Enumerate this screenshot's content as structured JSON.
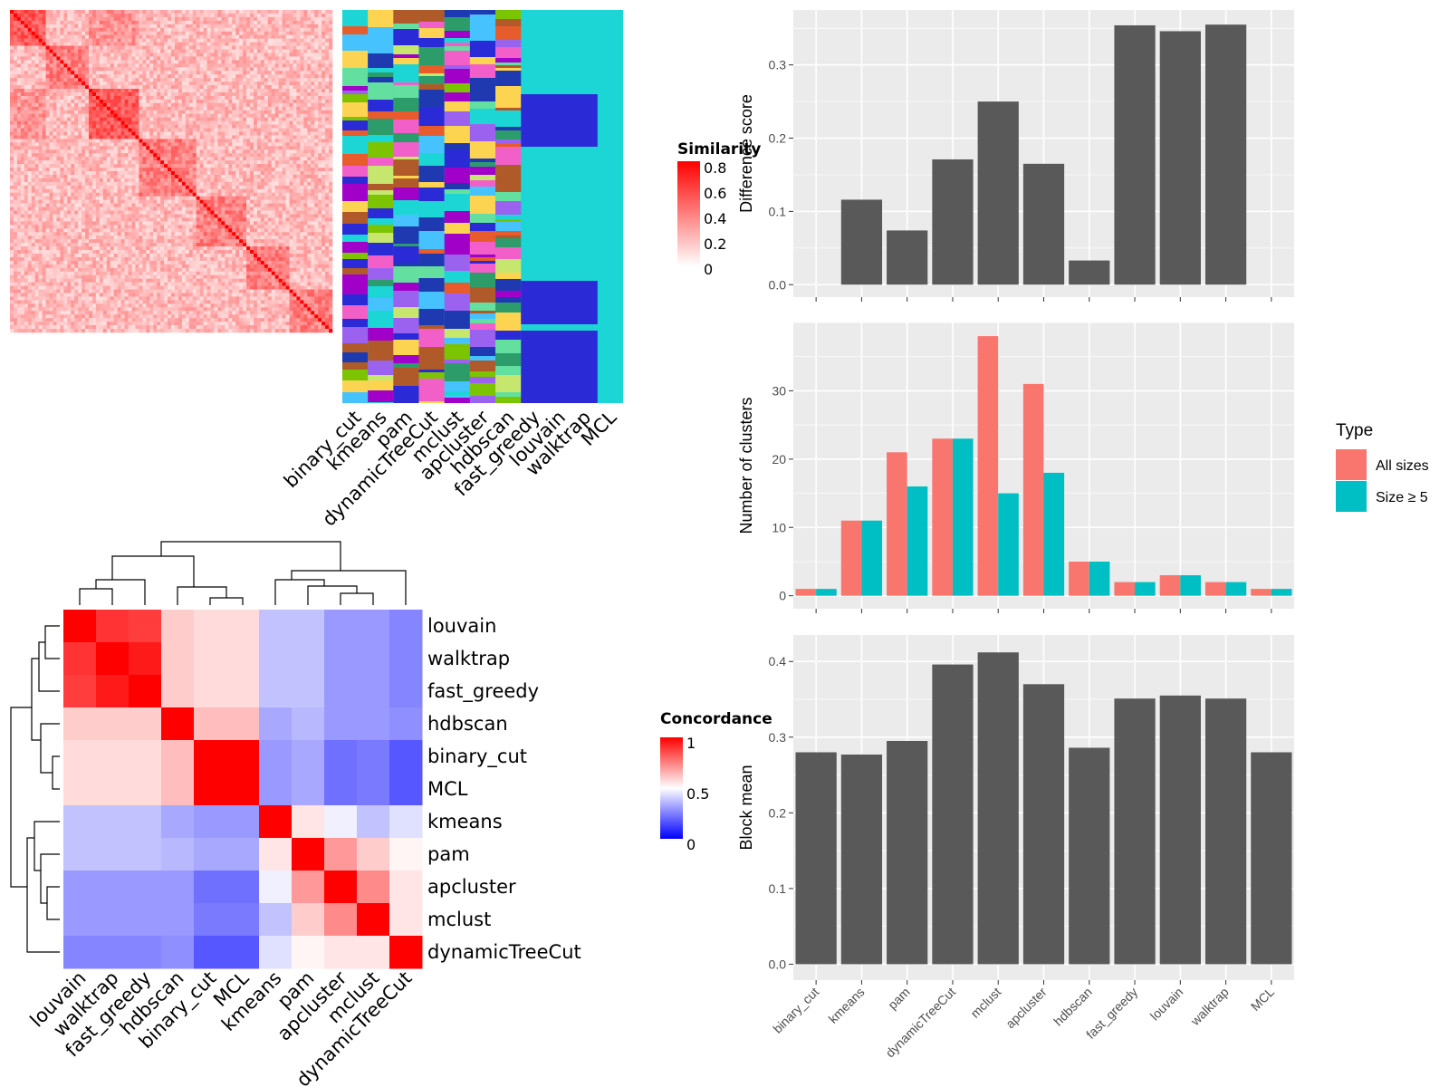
{
  "legends": {
    "similarity": {
      "title": "Similarity",
      "ticks": [
        "0.8",
        "0.6",
        "0.4",
        "0.2",
        "0"
      ],
      "colors": [
        "#ffffff",
        "#ff0000"
      ]
    },
    "concordance": {
      "title": "Concordance",
      "ticks": [
        "1",
        "0.5",
        "0"
      ],
      "colors": [
        "#0000ff",
        "#ffffff",
        "#ff0000"
      ]
    }
  },
  "chart_data": [
    {
      "type": "heatmap",
      "name": "similarity-matrix",
      "description_values": "signature-gene similarity matrix, ordered rows/cols, red diagonal blocks",
      "color_scale": {
        "min": 0,
        "max": 0.85,
        "low_color": "#ffffff",
        "high_color": "#ff0000"
      }
    },
    {
      "type": "heatmap",
      "name": "partition-annotation",
      "columns": [
        "binary_cut",
        "kmeans",
        "pam",
        "dynamicTreeCut",
        "mclust",
        "apcluster",
        "hdbscan",
        "fast_greedy",
        "louvain",
        "walktrap",
        "MCL"
      ]
    },
    {
      "type": "heatmap",
      "name": "concordance-matrix",
      "rows": [
        "louvain",
        "walktrap",
        "fast_greedy",
        "hdbscan",
        "binary_cut",
        "MCL",
        "kmeans",
        "pam",
        "apcluster",
        "mclust",
        "dynamicTreeCut"
      ],
      "cols": [
        "louvain",
        "walktrap",
        "fast_greedy",
        "hdbscan",
        "binary_cut",
        "MCL",
        "kmeans",
        "pam",
        "apcluster",
        "mclust",
        "dynamicTreeCut"
      ],
      "values": [
        [
          1.0,
          0.9,
          0.88,
          0.6,
          0.57,
          0.57,
          0.38,
          0.38,
          0.3,
          0.3,
          0.26
        ],
        [
          0.9,
          1.0,
          0.95,
          0.6,
          0.57,
          0.57,
          0.38,
          0.38,
          0.3,
          0.3,
          0.26
        ],
        [
          0.88,
          0.95,
          1.0,
          0.6,
          0.57,
          0.57,
          0.38,
          0.38,
          0.3,
          0.3,
          0.26
        ],
        [
          0.6,
          0.6,
          0.6,
          1.0,
          0.63,
          0.63,
          0.33,
          0.36,
          0.3,
          0.3,
          0.28
        ],
        [
          0.57,
          0.57,
          0.57,
          0.63,
          1.0,
          1.0,
          0.3,
          0.33,
          0.22,
          0.24,
          0.17
        ],
        [
          0.57,
          0.57,
          0.57,
          0.63,
          1.0,
          1.0,
          0.3,
          0.33,
          0.22,
          0.24,
          0.17
        ],
        [
          0.38,
          0.38,
          0.38,
          0.33,
          0.3,
          0.3,
          1.0,
          0.55,
          0.47,
          0.38,
          0.44
        ],
        [
          0.38,
          0.38,
          0.38,
          0.36,
          0.33,
          0.33,
          0.55,
          1.0,
          0.7,
          0.6,
          0.52
        ],
        [
          0.3,
          0.3,
          0.3,
          0.3,
          0.22,
          0.22,
          0.47,
          0.7,
          1.0,
          0.73,
          0.55
        ],
        [
          0.3,
          0.3,
          0.3,
          0.3,
          0.24,
          0.24,
          0.38,
          0.6,
          0.73,
          1.0,
          0.55
        ],
        [
          0.26,
          0.26,
          0.26,
          0.28,
          0.17,
          0.17,
          0.44,
          0.52,
          0.55,
          0.55,
          1.0
        ]
      ],
      "color_scale": {
        "min": 0,
        "mid": 0.5,
        "max": 1
      }
    },
    {
      "type": "bar",
      "name": "difference-score",
      "categories": [
        "binary_cut",
        "kmeans",
        "pam",
        "dynamicTreeCut",
        "mclust",
        "apcluster",
        "hdbscan",
        "fast_greedy",
        "louvain",
        "walktrap",
        "MCL"
      ],
      "values": [
        0.0,
        0.116,
        0.074,
        0.171,
        0.25,
        0.165,
        0.033,
        0.354,
        0.346,
        0.355,
        0.0
      ],
      "ylabel": "Difference score",
      "ylim": [
        -0.017,
        0.375
      ],
      "yticks": [
        "0.0",
        "0.1",
        "0.2",
        "0.3"
      ],
      "bar_color": "#595959"
    },
    {
      "type": "bar",
      "name": "number-of-clusters",
      "categories": [
        "binary_cut",
        "kmeans",
        "pam",
        "dynamicTreeCut",
        "mclust",
        "apcluster",
        "hdbscan",
        "fast_greedy",
        "louvain",
        "walktrap",
        "MCL"
      ],
      "series": [
        {
          "name": "All sizes",
          "values": [
            1,
            11,
            21,
            23,
            38,
            31,
            5,
            2,
            3,
            2,
            1
          ],
          "color": "#f8766d"
        },
        {
          "name": "Size ≥ 5",
          "values": [
            1,
            11,
            16,
            23,
            15,
            18,
            5,
            2,
            3,
            2,
            1
          ],
          "color": "#00bfc4"
        }
      ],
      "ylabel": "Number of clusters",
      "ylim": [
        -1.9,
        40
      ],
      "yticks": [
        "0",
        "10",
        "20",
        "30"
      ],
      "legend": {
        "title": "Type",
        "placement": "right"
      }
    },
    {
      "type": "bar",
      "name": "block-mean",
      "categories": [
        "binary_cut",
        "kmeans",
        "pam",
        "dynamicTreeCut",
        "mclust",
        "apcluster",
        "hdbscan",
        "fast_greedy",
        "louvain",
        "walktrap",
        "MCL"
      ],
      "values": [
        0.28,
        0.277,
        0.295,
        0.396,
        0.412,
        0.37,
        0.286,
        0.351,
        0.355,
        0.351,
        0.28
      ],
      "ylabel": "Block mean",
      "ylim": [
        -0.021,
        0.435
      ],
      "yticks": [
        "0.0",
        "0.1",
        "0.2",
        "0.3",
        "0.4"
      ],
      "xtick_labels": [
        "binary_cut",
        "kmeans",
        "pam",
        "dynamicTreeCut",
        "mclust",
        "apcluster",
        "hdbscan",
        "fast_greedy",
        "louvain",
        "walktrap",
        "MCL"
      ],
      "bar_color": "#595959"
    }
  ]
}
